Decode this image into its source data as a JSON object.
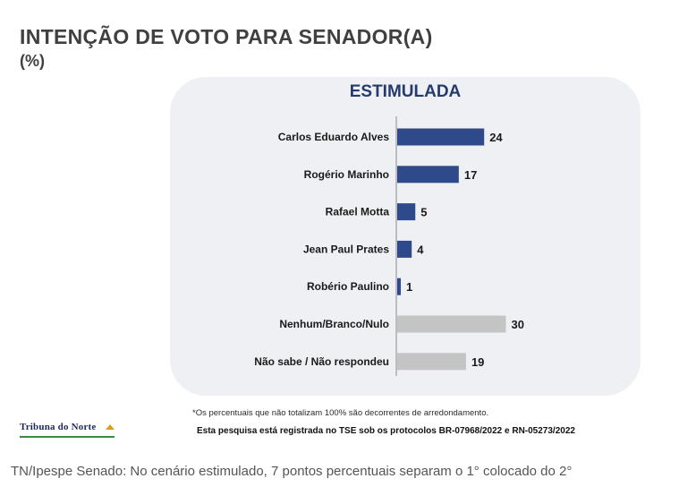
{
  "header": {
    "title": "INTENÇÃO DE VOTO PARA SENADOR(A)",
    "subtitle": "(%)"
  },
  "chart_data": {
    "type": "bar",
    "orientation": "horizontal",
    "title": "ESTIMULADA",
    "categories": [
      "Carlos Eduardo Alves",
      "Rogério Marinho",
      "Rafael Motta",
      "Jean Paul Prates",
      "Robério Paulino",
      "Nenhum/Branco/Nulo",
      "Não sabe / Não respondeu"
    ],
    "values": [
      24,
      17,
      5,
      4,
      1,
      30,
      19
    ],
    "colors": [
      "#2f4a8a",
      "#2f4a8a",
      "#2f4a8a",
      "#2f4a8a",
      "#2f4a8a",
      "#c4c4c4",
      "#c4c4c4"
    ],
    "data_labels": true,
    "xlim": [
      0,
      30
    ]
  },
  "footer": {
    "footnote": "*Os percentuais que não totalizam 100% são decorrentes de arredondamento.",
    "registry": "Esta pesquisa está registrada no TSE sob os protocolos BR-07968/2022 e RN-05273/2022",
    "logo_text": "TRIBUNA DO NORTE"
  },
  "caption": "TN/Ipespe Senado: No cenário estimulado, 7 pontos percentuais separam o 1° colocado do 2°"
}
